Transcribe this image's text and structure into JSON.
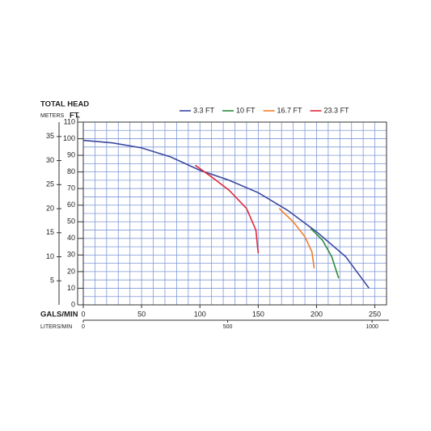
{
  "chart_data": {
    "type": "line",
    "ylabel": "TOTAL HEAD",
    "y2label": "METERS",
    "yunit": "FT.",
    "xlabel": "GALS/MIN",
    "x2label": "LITERS/MIN",
    "xlim": [
      0,
      260
    ],
    "xticks": [
      0,
      50,
      100,
      150,
      200,
      250
    ],
    "x2lim": [
      0,
      1050
    ],
    "x2ticks": [
      0,
      500,
      1000
    ],
    "ylim": [
      0,
      110
    ],
    "yticks": [
      0,
      10,
      20,
      30,
      40,
      50,
      60,
      70,
      80,
      90,
      100,
      110
    ],
    "y2lim": [
      0,
      38
    ],
    "y2ticks": [
      5,
      10,
      15,
      20,
      25,
      30,
      35
    ],
    "grid": true,
    "grid_color": "#7f97d6",
    "series": [
      {
        "name": "3.3 FT",
        "color": "#3a48a0",
        "x": [
          0,
          25,
          50,
          75,
          100,
          125,
          150,
          175,
          200,
          225,
          245
        ],
        "values": [
          99,
          97.5,
          94.5,
          89,
          81,
          75,
          67.5,
          57,
          44,
          29,
          10
        ]
      },
      {
        "name": "10 FT",
        "color": "#2a8a3a",
        "x": [
          195,
          205,
          213,
          219
        ],
        "values": [
          46,
          39,
          29,
          16
        ]
      },
      {
        "name": "16.7 FT",
        "color": "#f07d2a",
        "x": [
          168,
          180,
          190,
          196,
          198
        ],
        "values": [
          58,
          50,
          41,
          32,
          22
        ]
      },
      {
        "name": "23.3 FT",
        "color": "#e0283a",
        "x": [
          96,
          110,
          125,
          140,
          148,
          150
        ],
        "values": [
          84,
          77,
          69,
          58,
          45,
          31
        ]
      }
    ]
  }
}
